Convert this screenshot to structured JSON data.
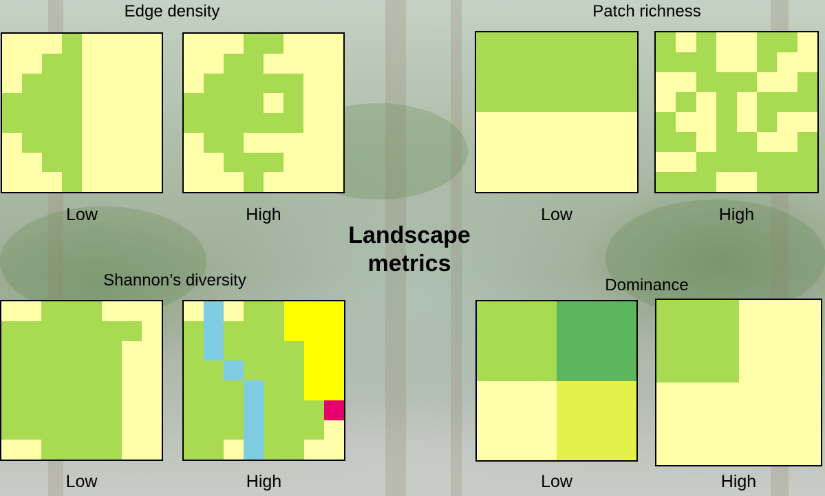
{
  "main_title": "Landscape metrics",
  "colors": {
    "Y": "#ffffaa",
    "G": "#a8da52",
    "D": "#5bb65c",
    "L": "#e4f04c",
    "B": "#7fcde2",
    "K": "#ffff00",
    "M": "#e6006e"
  },
  "panels": [
    {
      "title": "Edge density",
      "low_label": "Low",
      "high_label": "High",
      "low_grid": [
        "YYYGYYYY",
        "YYGGYYYY",
        "YGGGYYYY",
        "GGGGYYYY",
        "GGGGYYYY",
        "YGGGYYYY",
        "YYGGYYYY",
        "YYYGYYYY"
      ],
      "high_grid": [
        "YYYGGYYY",
        "YYGGYYYY",
        "YGGGGGYY",
        "GGGGYGYY",
        "GGGGGGYY",
        "YGGYYYYY",
        "YYGGGYYY",
        "YYYGYYYY"
      ]
    },
    {
      "title": "Patch richness",
      "low_label": "Low",
      "high_label": "High",
      "low_grid": [
        "GGGGGGGG",
        "GGGGGGGG",
        "GGGGGGGG",
        "GGGGGGGG",
        "YYYYYYYY",
        "YYYYYYYY",
        "YYYYYYYY",
        "YYYYYYYY"
      ],
      "high_grid": [
        "GYGYYGGY",
        "GGGYYGYY",
        "YYGGGYYG",
        "YGYGYGGG",
        "GYYGYGYY",
        "GGYGGYYG",
        "YYGGGGGG",
        "GGGYYGGG"
      ]
    },
    {
      "title": "Shannon’s diversity",
      "low_label": "Low",
      "high_label": "High",
      "low_grid": [
        "YYGGGYYY",
        "GGGGGGGY",
        "GGGGGGYY",
        "GGGGGGYY",
        "GGGGGGYY",
        "GGGGGGYY",
        "GGGGGGYY",
        "YYGGGGYY"
      ],
      "high_grid": [
        "YBYGGKKK",
        "GBGGGKKK",
        "GBGGGGKK",
        "GGBGGGKK",
        "GGGBGGKK",
        "GGGBGGGM",
        "GGGBGGGY",
        "GGYBGGYY"
      ]
    },
    {
      "title": "Dominance",
      "low_label": "Low",
      "high_label": "High",
      "low_grid": [
        "GGDD",
        "GGDD",
        "YYLL",
        "YYLL"
      ],
      "high_grid": [
        "GGYY",
        "GGYY",
        "YYYY",
        "YYYY"
      ]
    }
  ]
}
